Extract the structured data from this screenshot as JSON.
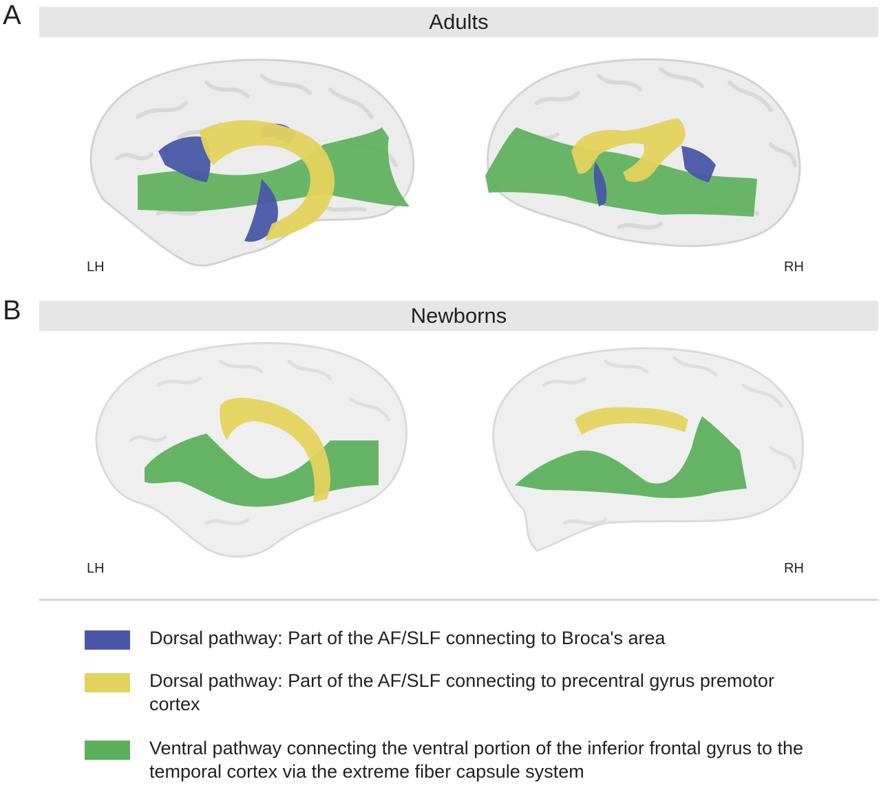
{
  "panels": [
    {
      "letter": "A",
      "title": "Adults",
      "left_label": "LH",
      "right_label": "RH"
    },
    {
      "letter": "B",
      "title": "Newborns",
      "left_label": "LH",
      "right_label": "RH"
    }
  ],
  "legend": [
    {
      "color": "#4a57a7",
      "text": "Dorsal pathway: Part of the AF/SLF connecting to Broca's area"
    },
    {
      "color": "#e3d35d",
      "text": "Dorsal pathway: Part of the AF/SLF connecting to precentral gyrus premotor cortex"
    },
    {
      "color": "#5cb05c",
      "text": "Ventral pathway connecting the ventral portion of the inferior frontal gyrus to the temporal cortex via the extreme fiber capsule system"
    }
  ],
  "colors": {
    "brain_fill": "#e9e9e9",
    "brain_stroke": "#cfcfcf",
    "blue": "#4a57a7",
    "yellow": "#e3d35d",
    "green": "#5cb05c"
  }
}
